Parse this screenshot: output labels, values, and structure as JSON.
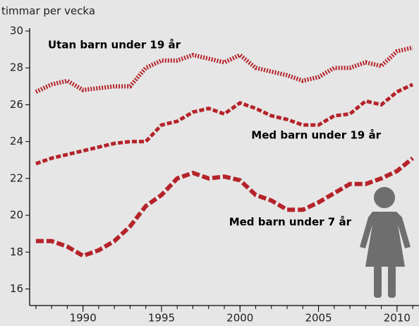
{
  "chart_data": {
    "type": "line",
    "y_label": "timmar per vecka",
    "x": [
      1987,
      1988,
      1989,
      1990,
      1991,
      1992,
      1993,
      1994,
      1995,
      1996,
      1997,
      1998,
      1999,
      2000,
      2001,
      2002,
      2003,
      2004,
      2005,
      2006,
      2007,
      2008,
      2009,
      2010,
      2011
    ],
    "series": [
      {
        "name": "Utan barn under 19 år",
        "color": "#b5232a",
        "dash": "2 2",
        "values": [
          26.7,
          27.1,
          27.3,
          26.8,
          26.9,
          27.0,
          27.0,
          28.0,
          28.4,
          28.4,
          28.7,
          28.5,
          28.3,
          28.7,
          28.0,
          27.8,
          27.6,
          27.3,
          27.5,
          28.0,
          28.0,
          28.3,
          28.1,
          28.9,
          29.1
        ]
      },
      {
        "name": "Med barn under 19 år",
        "color": "#b5232a",
        "dash": "7 3",
        "values": [
          22.8,
          23.1,
          23.3,
          23.5,
          23.7,
          23.9,
          24.0,
          24.0,
          24.9,
          25.1,
          25.6,
          25.8,
          25.5,
          26.1,
          25.8,
          25.4,
          25.2,
          24.9,
          24.9,
          25.4,
          25.5,
          26.2,
          26.0,
          26.7,
          27.1
        ]
      },
      {
        "name": "Med barn under 7 år",
        "color": "#b5232a",
        "dash": "11 4",
        "values": [
          18.6,
          18.6,
          18.3,
          17.8,
          18.1,
          18.6,
          19.4,
          20.5,
          21.1,
          22.0,
          22.3,
          22.0,
          22.1,
          21.9,
          21.1,
          20.8,
          20.3,
          20.3,
          20.7,
          21.2,
          21.7,
          21.7,
          22.0,
          22.4,
          23.1
        ]
      }
    ],
    "xlim": [
      1986.6,
      2011.4
    ],
    "xticks": [
      1990,
      1995,
      2000,
      2005,
      2010
    ],
    "ylim": [
      15.1,
      30
    ],
    "yticks": [
      16,
      18,
      20,
      22,
      24,
      26,
      28,
      30
    ]
  }
}
